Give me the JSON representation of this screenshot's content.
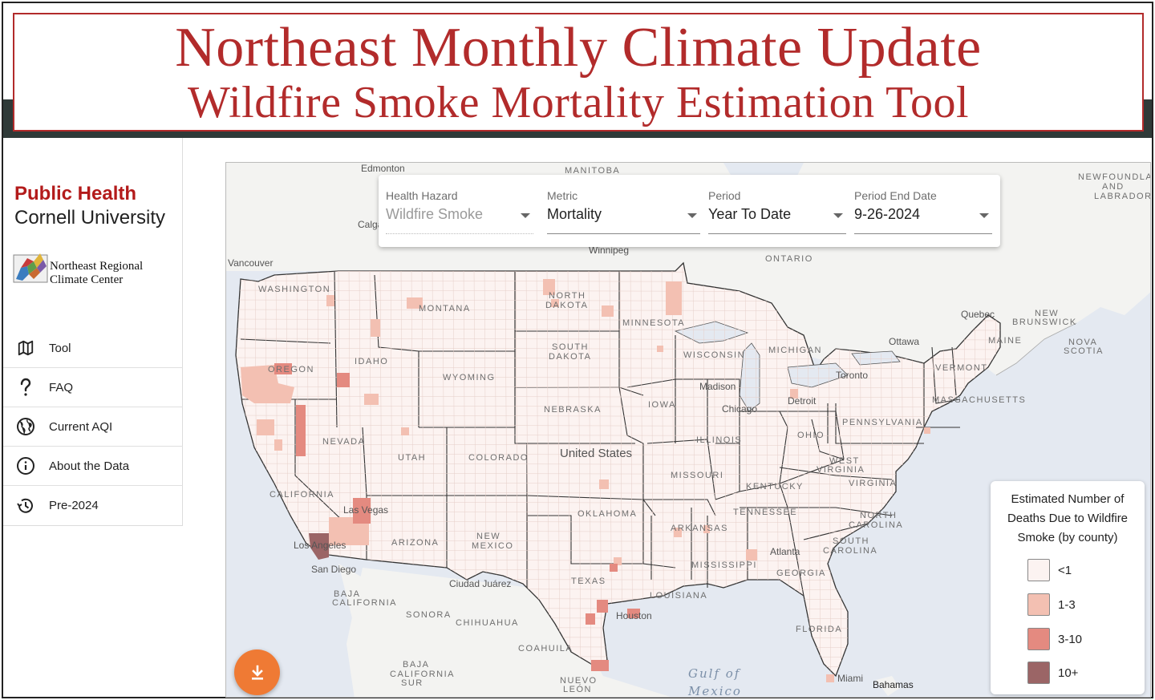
{
  "banner": {
    "title": "Northeast Monthly Climate Update",
    "subtitle": "Wildfire Smoke Mortality Estimation Tool"
  },
  "brand": {
    "line1": "Public Health",
    "line2": "Cornell University",
    "partner_line1": "Northeast Regional",
    "partner_line2": "Climate Center"
  },
  "nav": [
    {
      "label": "Tool",
      "icon": "map-icon"
    },
    {
      "label": "FAQ",
      "icon": "question-icon"
    },
    {
      "label": "Current AQI",
      "icon": "globe-icon"
    },
    {
      "label": "About the Data",
      "icon": "info-icon"
    },
    {
      "label": "Pre-2024",
      "icon": "history-icon"
    }
  ],
  "filters": {
    "hazard": {
      "label": "Health Hazard",
      "value": "Wildfire Smoke"
    },
    "metric": {
      "label": "Metric",
      "value": "Mortality"
    },
    "period": {
      "label": "Period",
      "value": "Year To Date"
    },
    "end_date": {
      "label": "Period End Date",
      "value": "9-26-2024"
    }
  },
  "map": {
    "country_label": "United States",
    "regions": [
      "MANITOBA",
      "ONTARIO",
      "NEWFOUNDLAND",
      "AND",
      "LABRADOR",
      "NEW",
      "BRUNSWICK",
      "NOVA",
      "SCOTIA",
      "BAJA",
      "CALIFORNIA",
      "SONORA",
      "CHIHUAHUA",
      "COAHUILA",
      "BAJA",
      "CALIFORNIA",
      "SUR",
      "NUEVO",
      "LEÓN"
    ],
    "states": [
      "WASHINGTON",
      "MONTANA",
      "NORTH",
      "DAKOTA",
      "MINNESOTA",
      "OREGON",
      "IDAHO",
      "SOUTH",
      "DAKOTA",
      "WYOMING",
      "WISCONSIN",
      "MICHIGAN",
      "MAINE",
      "VERMONT",
      "MASSACHUSETTS",
      "NEBRASKA",
      "IOWA",
      "NEVADA",
      "UTAH",
      "COLORADO",
      "ILLINOIS",
      "OHIO",
      "PENNSYLVANIA",
      "CALIFORNIA",
      "MISSOURI",
      "KENTUCKY",
      "WEST",
      "VIRGINIA",
      "VIRGINIA",
      "OKLAHOMA",
      "TENNESSEE",
      "NORTH",
      "CAROLINA",
      "ARIZONA",
      "NEW",
      "MEXICO",
      "ARKANSAS",
      "SOUTH",
      "CAROLINA",
      "TEXAS",
      "MISSISSIPPI",
      "GEORGIA",
      "LOUISIANA",
      "FLORIDA"
    ],
    "cities": [
      "Edmonton",
      "Calgary",
      "Vancouver",
      "Winnipeg",
      "Quebec",
      "Ottawa",
      "Toronto",
      "Madison",
      "Chicago",
      "Detroit",
      "Las Vegas",
      "Los Angeles",
      "San Diego",
      "Atlanta",
      "Houston",
      "Ciudad Juárez",
      "Miami",
      "Bahamas"
    ],
    "seas": [
      "Gulf of",
      "Mexico"
    ]
  },
  "legend": {
    "title": "Estimated Number of Deaths Due to Wildfire Smoke (by county)",
    "items": [
      {
        "label": "<1",
        "color": "#fcf3f1"
      },
      {
        "label": "1-3",
        "color": "#f3c0b2"
      },
      {
        "label": "3-10",
        "color": "#e48a80"
      },
      {
        "label": "10+",
        "color": "#9b6566"
      }
    ]
  },
  "colors": {
    "accent": "#b22b2b",
    "fab": "#ef7a34",
    "county_base": "#fcf3f1",
    "land": "#f4f4f2",
    "water": "#e4e9f1"
  },
  "fab": {
    "icon": "download-icon"
  }
}
